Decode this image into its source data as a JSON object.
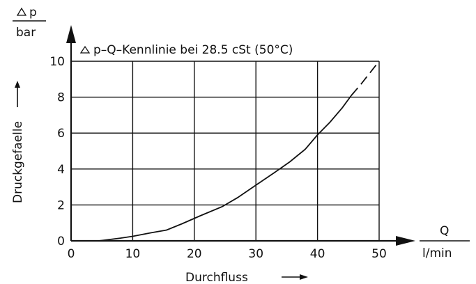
{
  "chart_data": {
    "type": "line",
    "title": "p–Q–Kennlinie bei 28.5 cSt (50°C)",
    "title_symbol": "delta-triangle",
    "xlabel": "Durchfluss",
    "xunit_num": "Q",
    "xunit_den": "l/min",
    "ylabel": "Druckgefaelle",
    "yunit_num": "p",
    "yunit_den": "bar",
    "y_symbol": "delta-triangle",
    "xlim": [
      0,
      50
    ],
    "ylim": [
      0,
      10
    ],
    "xticks": [
      0,
      10,
      20,
      30,
      40,
      50
    ],
    "yticks": [
      0,
      2,
      4,
      6,
      8,
      10
    ],
    "grid": true,
    "series": [
      {
        "style": "solid",
        "x": [
          4.5,
          8,
          10,
          13,
          15.5,
          18,
          21,
          24.5,
          27,
          30,
          33,
          35.5,
          38,
          40,
          42,
          44,
          45.5
        ],
        "y": [
          0,
          0.15,
          0.25,
          0.45,
          0.6,
          0.95,
          1.4,
          1.9,
          2.4,
          3.1,
          3.8,
          4.4,
          5.1,
          5.9,
          6.6,
          7.4,
          8.1
        ]
      },
      {
        "style": "dashed",
        "x": [
          45.5,
          47,
          48.5,
          50
        ],
        "y": [
          8.1,
          8.7,
          9.35,
          10
        ]
      }
    ]
  }
}
